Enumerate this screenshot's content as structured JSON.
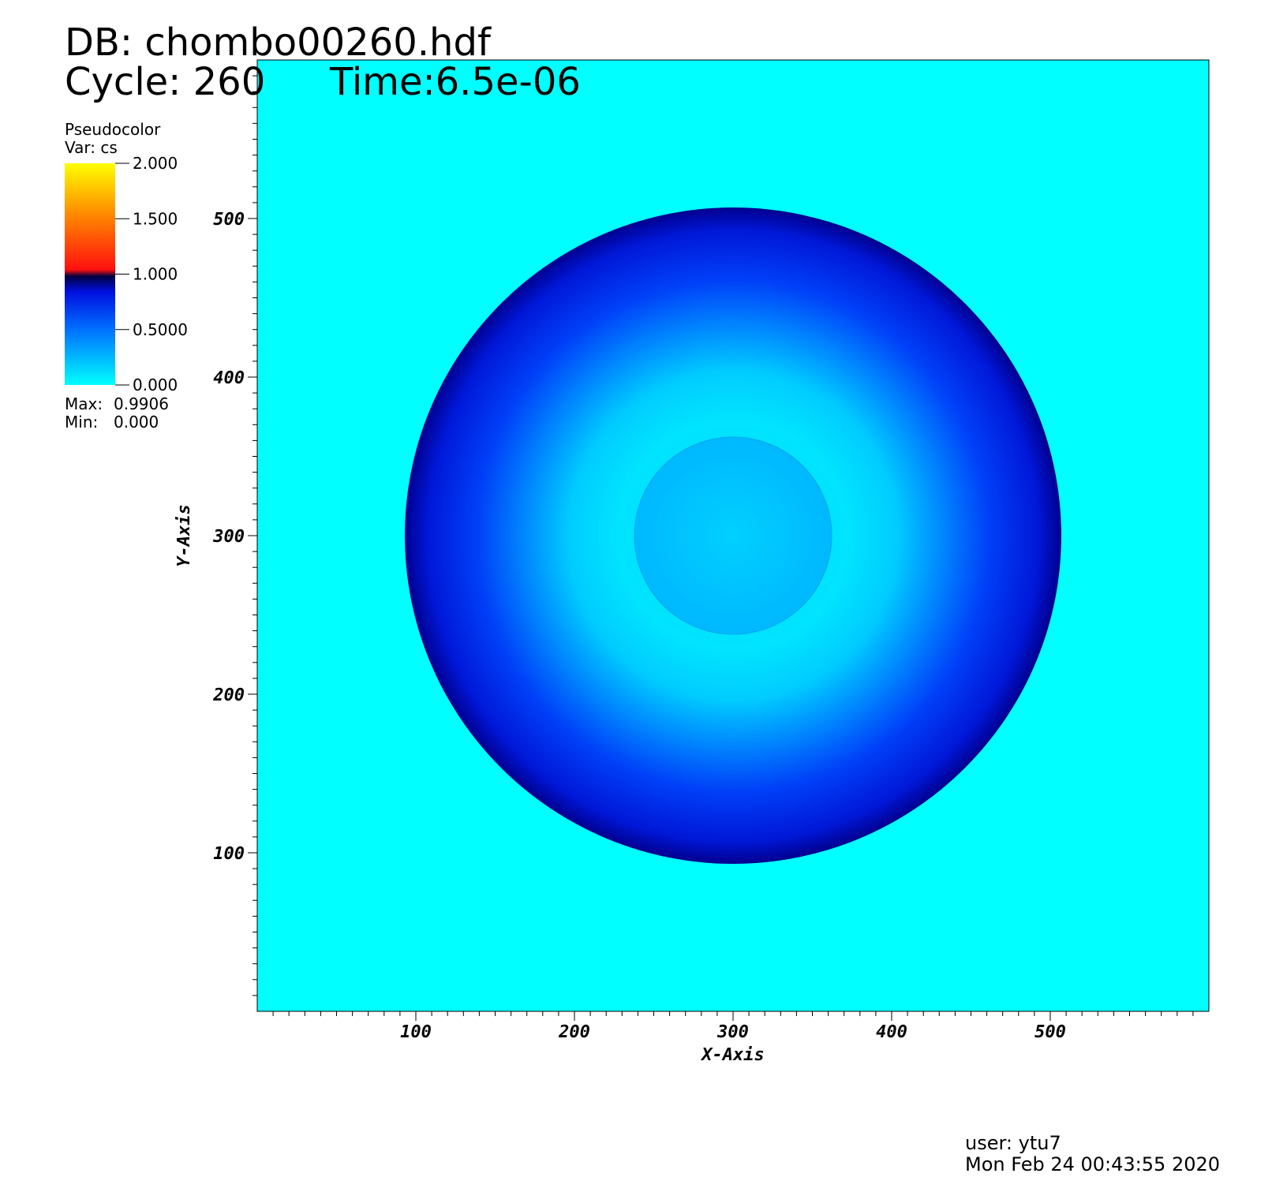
{
  "chart_data": {
    "type": "pseudocolor",
    "title_lines": [
      "DB: chombo00260.hdf",
      "Cycle: 260",
      "Time:6.5e-06"
    ],
    "legend": {
      "plot": "Pseudocolor",
      "variable": "Var: cs",
      "clim": [
        0,
        2
      ],
      "ticks": [
        {
          "value": 2,
          "label": "2.000"
        },
        {
          "value": 1.5,
          "label": "1.500"
        },
        {
          "value": 1,
          "label": "1.000"
        },
        {
          "value": 0.5,
          "label": "0.5000"
        },
        {
          "value": 0,
          "label": "0.000"
        }
      ],
      "max": {
        "label": "Max:",
        "value": 0.9906
      },
      "min": {
        "label": "Min:",
        "value": 0,
        "value_label": "0.000"
      }
    },
    "x_label": "X-Axis",
    "y_label": "Y-Axis",
    "xlim": [
      0,
      600
    ],
    "ylim": [
      0,
      600
    ],
    "xticks": [
      100,
      200,
      300,
      400,
      500
    ],
    "yticks": [
      100,
      200,
      300,
      400,
      500
    ],
    "user": "user: ytu7",
    "date": "Mon Feb 24 00:43:55 2020"
  }
}
